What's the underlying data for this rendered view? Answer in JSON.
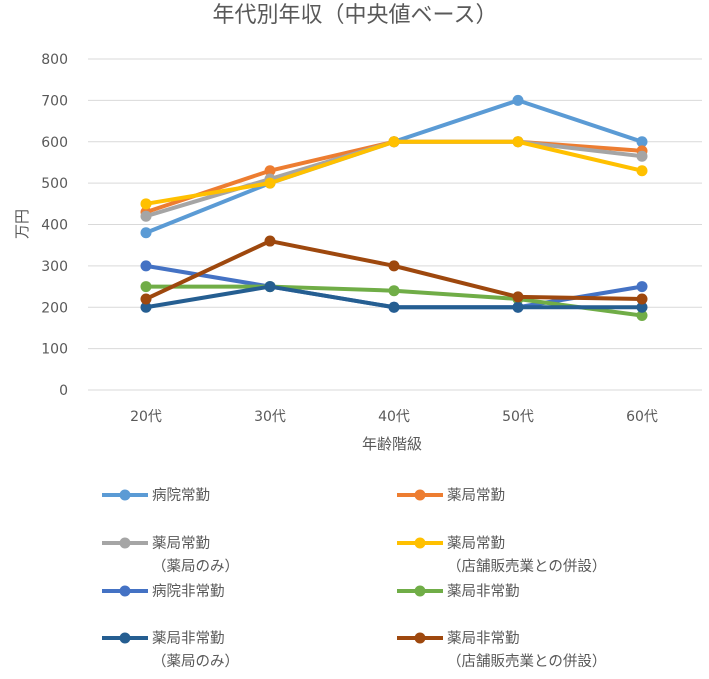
{
  "chart_data": {
    "type": "line",
    "title": "年代別年収（中央値ベース）",
    "xlabel": "年齢階級",
    "ylabel": "万円",
    "categories": [
      "20代",
      "30代",
      "40代",
      "50代",
      "60代"
    ],
    "ylim": [
      0,
      800
    ],
    "yticks": [
      0,
      100,
      200,
      300,
      400,
      500,
      600,
      700,
      800
    ],
    "grid": true,
    "legend_position": "bottom",
    "series": [
      {
        "name": "病院常勤",
        "name_lines": [
          "病院常勤"
        ],
        "color": "#5B9BD5",
        "values": [
          380,
          500,
          600,
          700,
          600
        ]
      },
      {
        "name": "薬局常勤",
        "name_lines": [
          "薬局常勤"
        ],
        "color": "#ED7D31",
        "values": [
          430,
          530,
          600,
          600,
          578
        ]
      },
      {
        "name": "薬局常勤（薬局のみ）",
        "name_lines": [
          "薬局常勤",
          "（薬局のみ）"
        ],
        "color": "#A5A5A5",
        "values": [
          420,
          510,
          600,
          600,
          565
        ]
      },
      {
        "name": "薬局常勤（店舗販売業との併設）",
        "name_lines": [
          "薬局常勤",
          "（店舗販売業との併設）"
        ],
        "color": "#FFC000",
        "values": [
          450,
          500,
          600,
          600,
          530
        ]
      },
      {
        "name": "病院非常勤",
        "name_lines": [
          "病院非常勤"
        ],
        "color": "#4472C4",
        "values": [
          300,
          250,
          200,
          200,
          250
        ]
      },
      {
        "name": "薬局非常勤",
        "name_lines": [
          "薬局非常勤"
        ],
        "color": "#70AD47",
        "values": [
          250,
          250,
          240,
          220,
          180
        ]
      },
      {
        "name": "薬局非常勤（薬局のみ）",
        "name_lines": [
          "薬局非常勤",
          "（薬局のみ）"
        ],
        "color": "#255E91",
        "values": [
          200,
          250,
          200,
          200,
          200
        ]
      },
      {
        "name": "薬局非常勤（店舗販売業との併設）",
        "name_lines": [
          "薬局非常勤",
          "（店舗販売業との併設）"
        ],
        "color": "#9E480E",
        "values": [
          220,
          360,
          300,
          225,
          220
        ]
      }
    ]
  }
}
